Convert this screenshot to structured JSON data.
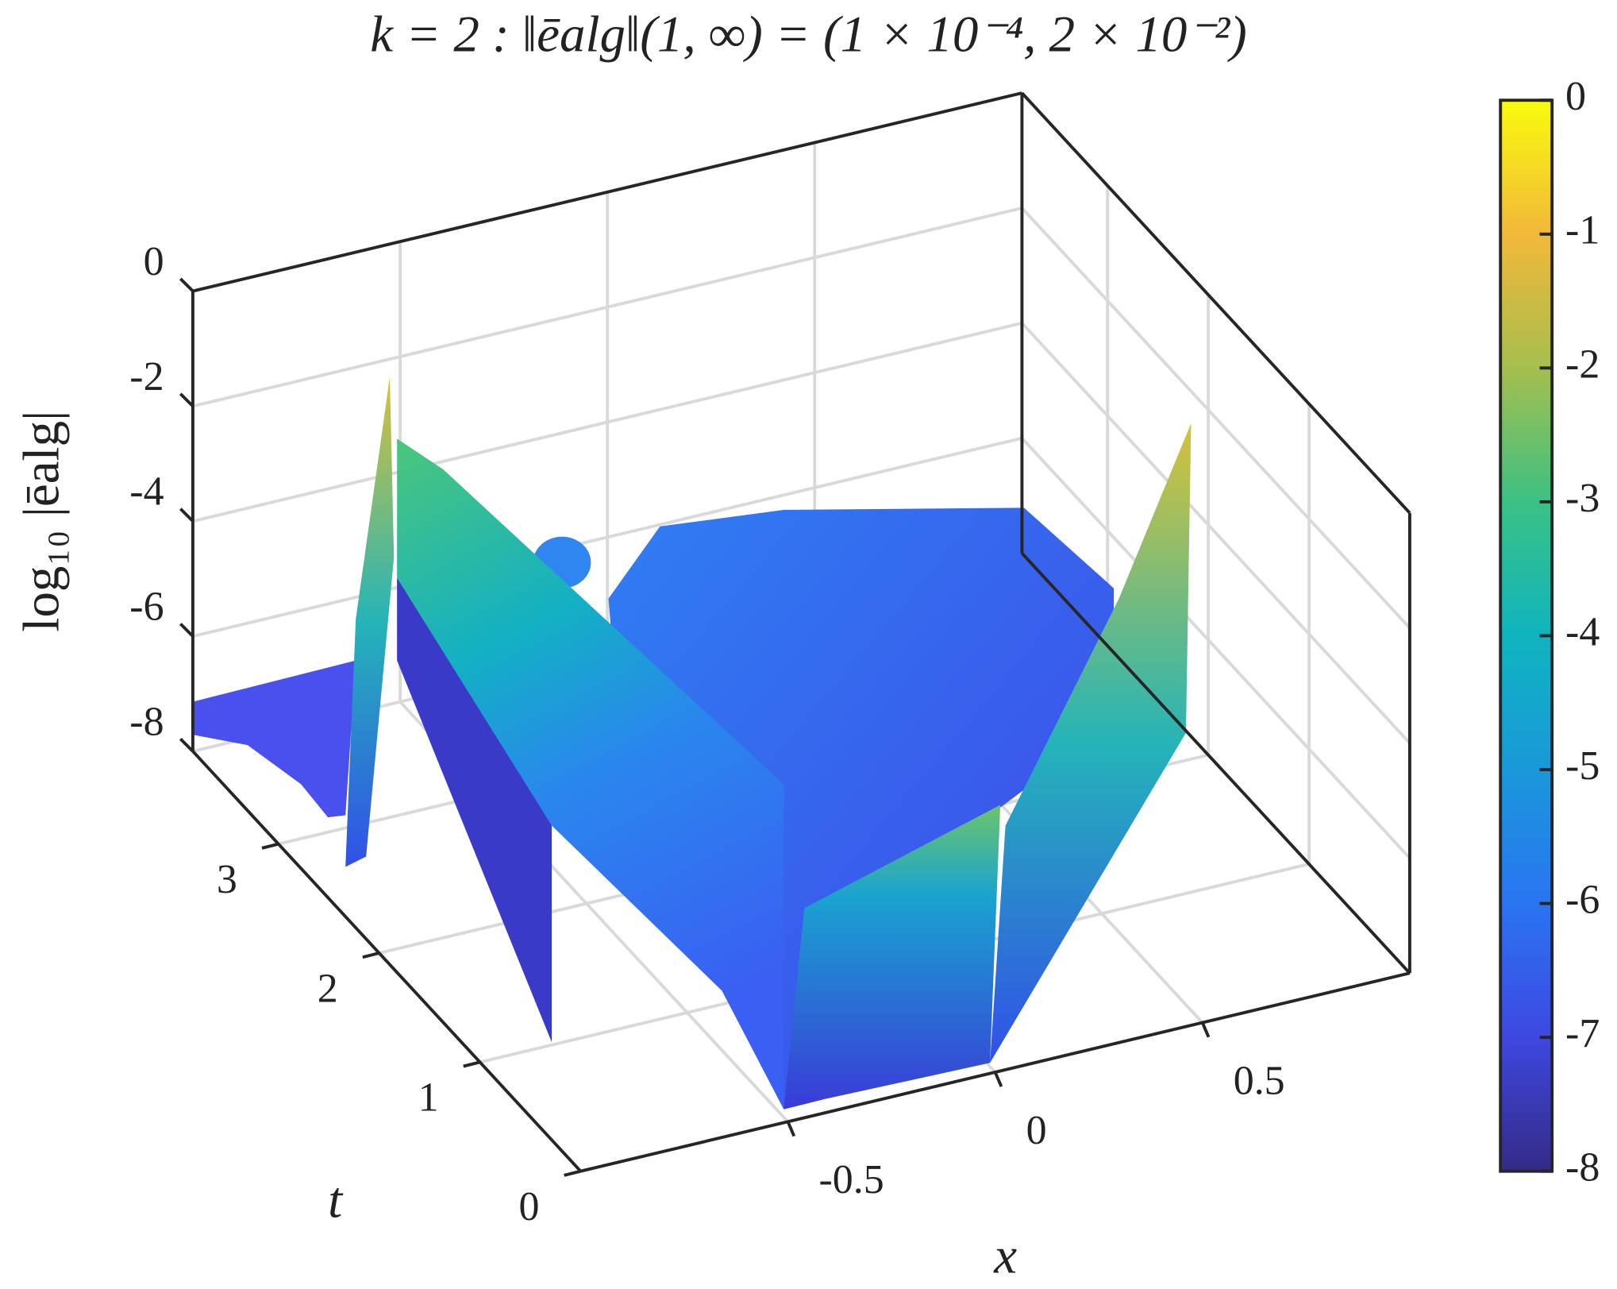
{
  "chart_data": {
    "type": "surface3d",
    "title": "k = 2 : ‖ēalg‖(1, ∞) = (1 × 10⁻⁴, 2 × 10⁻²)",
    "xlabel": "x",
    "ylabel": "t",
    "zlabel": "log₁₀ |ēalg|",
    "xlim": [
      -1,
      1
    ],
    "xticks": [
      -0.5,
      0,
      0.5
    ],
    "ylim": [
      0,
      3.85
    ],
    "yticks": [
      0,
      1,
      2,
      3
    ],
    "zlim": [
      -8,
      0
    ],
    "zticks": [
      -8,
      -6,
      -4,
      -2,
      0
    ],
    "clim": [
      -8,
      0
    ],
    "cticks": [
      -8,
      -7,
      -6,
      -5,
      -4,
      -3,
      -2,
      -1,
      0
    ],
    "colormap": "parula",
    "grid": true
  }
}
